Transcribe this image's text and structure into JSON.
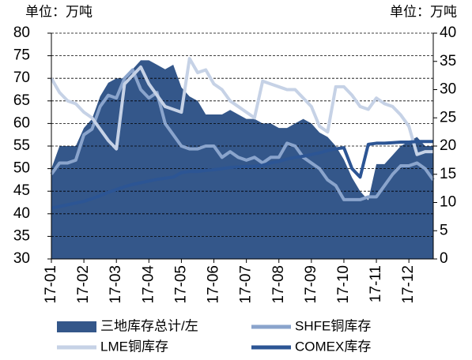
{
  "chart_data": {
    "type": "area-line",
    "y_unit_left": "单位：万吨",
    "y_unit_right": "单位：万吨",
    "categories": [
      "17-01",
      null,
      null,
      null,
      "17-02",
      null,
      null,
      null,
      "17-03",
      null,
      null,
      null,
      "17-04",
      null,
      null,
      null,
      "17-05",
      null,
      null,
      null,
      "17-06",
      null,
      null,
      null,
      "17-07",
      null,
      null,
      null,
      "17-08",
      null,
      null,
      null,
      "17-09",
      null,
      null,
      null,
      "17-10",
      null,
      null,
      null,
      "17-11",
      null,
      null,
      null,
      "17-12",
      null,
      null,
      null
    ],
    "ylim": [
      30,
      80
    ],
    "yticks": [
      30,
      35,
      40,
      45,
      50,
      55,
      60,
      65,
      70,
      75,
      80
    ],
    "y2lim": [
      0,
      40
    ],
    "y2ticks": [
      0,
      5,
      10,
      15,
      20,
      25,
      30,
      35,
      40
    ],
    "grid": true,
    "series": [
      {
        "name": "三地库存总计/左",
        "type": "area",
        "color": "#34578a",
        "values": [
          50,
          55,
          55,
          55,
          59,
          61,
          66,
          69,
          70,
          70,
          72,
          74,
          74,
          73,
          72,
          73,
          68,
          66,
          65,
          62,
          62,
          62,
          63,
          62,
          61,
          61,
          60,
          60,
          59,
          59,
          60,
          61,
          60,
          58,
          57,
          55,
          52,
          48,
          45,
          43,
          51,
          51,
          53,
          55,
          56,
          57,
          55,
          55
        ]
      },
      {
        "name": "SHFE铜库存",
        "type": "line",
        "axis": "y2",
        "color": "#8aa4cc",
        "values": [
          15,
          17,
          17,
          17.5,
          22,
          23,
          27,
          29,
          28.5,
          32,
          33.5,
          30,
          28.5,
          29.5,
          24,
          22,
          20,
          19.5,
          19.5,
          20,
          20,
          18,
          19,
          18,
          17.5,
          18,
          17,
          18,
          18,
          20.5,
          20,
          18,
          17,
          16,
          14,
          13,
          10.5,
          10.5,
          10.5,
          11,
          11,
          13,
          15,
          16.5,
          16.5,
          17,
          16,
          14
        ]
      },
      {
        "name": "LME铜库存",
        "type": "line",
        "axis": "y2",
        "color": "#c6d2e6",
        "values": [
          32,
          29.5,
          28,
          27.5,
          26,
          25,
          23,
          21,
          19.5,
          31,
          32.5,
          34,
          31,
          29,
          27,
          26.5,
          26,
          35.5,
          33,
          33.5,
          31,
          30,
          28,
          27,
          26,
          25,
          31.5,
          31,
          30.5,
          30,
          30,
          28.5,
          27,
          23.5,
          22.5,
          30.5,
          30.5,
          29,
          27,
          26.5,
          28.5,
          27.5,
          27,
          25.5,
          23.5,
          18.5,
          19,
          19
        ]
      },
      {
        "name": "COMEX库存",
        "type": "line",
        "axis": "y2",
        "color": "#2c5594",
        "values": [
          9,
          9.3,
          9.6,
          9.9,
          10.2,
          10.7,
          11.2,
          11.8,
          12.3,
          12.8,
          13.2,
          13.5,
          13.8,
          14.1,
          14.3,
          14.5,
          15.3,
          15.5,
          15.5,
          15.7,
          15.8,
          16,
          16.2,
          16.3,
          16.4,
          16.4,
          16.6,
          17,
          17.3,
          17.7,
          18,
          18.2,
          18.5,
          18.8,
          19.2,
          19.5,
          19.7,
          16,
          14.5,
          20.3,
          20.5,
          20.5,
          20.6,
          20.7,
          20.7,
          20.8,
          20.8,
          20.8
        ]
      }
    ]
  }
}
